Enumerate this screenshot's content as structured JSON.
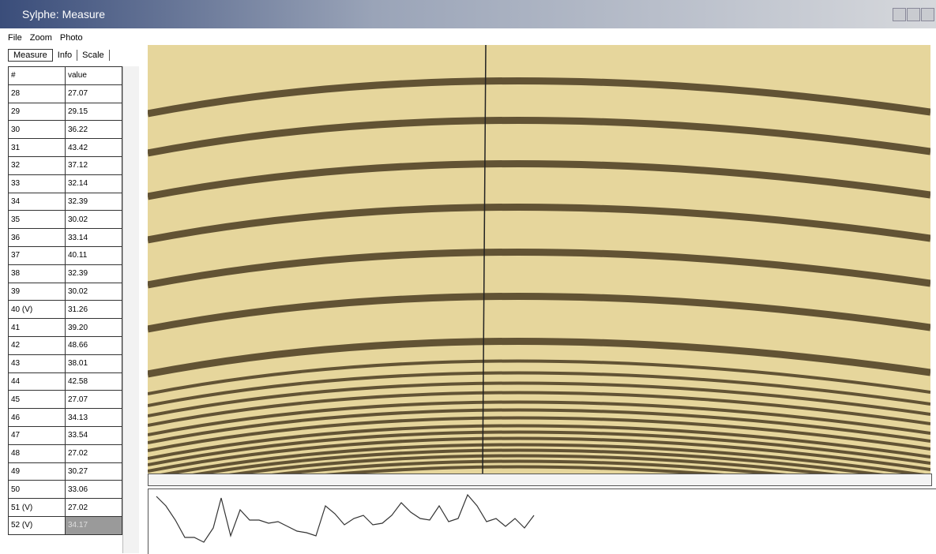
{
  "window": {
    "title": "Sylphe: Measure"
  },
  "menu": [
    "File",
    "Zoom",
    "Photo"
  ],
  "tabs": [
    "Measure",
    "Info",
    "Scale"
  ],
  "table": {
    "header": [
      "#",
      "value"
    ],
    "rows": [
      [
        "28",
        "27.07"
      ],
      [
        "29",
        "29.15"
      ],
      [
        "30",
        "36.22"
      ],
      [
        "31",
        "43.42"
      ],
      [
        "32",
        "37.12"
      ],
      [
        "33",
        "32.14"
      ],
      [
        "34",
        "32.39"
      ],
      [
        "35",
        "30.02"
      ],
      [
        "36",
        "33.14"
      ],
      [
        "37",
        "40.11"
      ],
      [
        "38",
        "32.39"
      ],
      [
        "39",
        "30.02"
      ],
      [
        "40 (V)",
        "31.26"
      ],
      [
        "41",
        "39.20"
      ],
      [
        "42",
        "48.66"
      ],
      [
        "43",
        "38.01"
      ],
      [
        "44",
        "42.58"
      ],
      [
        "45",
        "27.07"
      ],
      [
        "46",
        "34.13"
      ],
      [
        "47",
        "33.54"
      ],
      [
        "48",
        "27.02"
      ],
      [
        "49",
        "30.27"
      ],
      [
        "50",
        "33.06"
      ],
      [
        "51 (V)",
        "27.02"
      ],
      [
        "52 (V)",
        "34.17"
      ]
    ]
  }
}
